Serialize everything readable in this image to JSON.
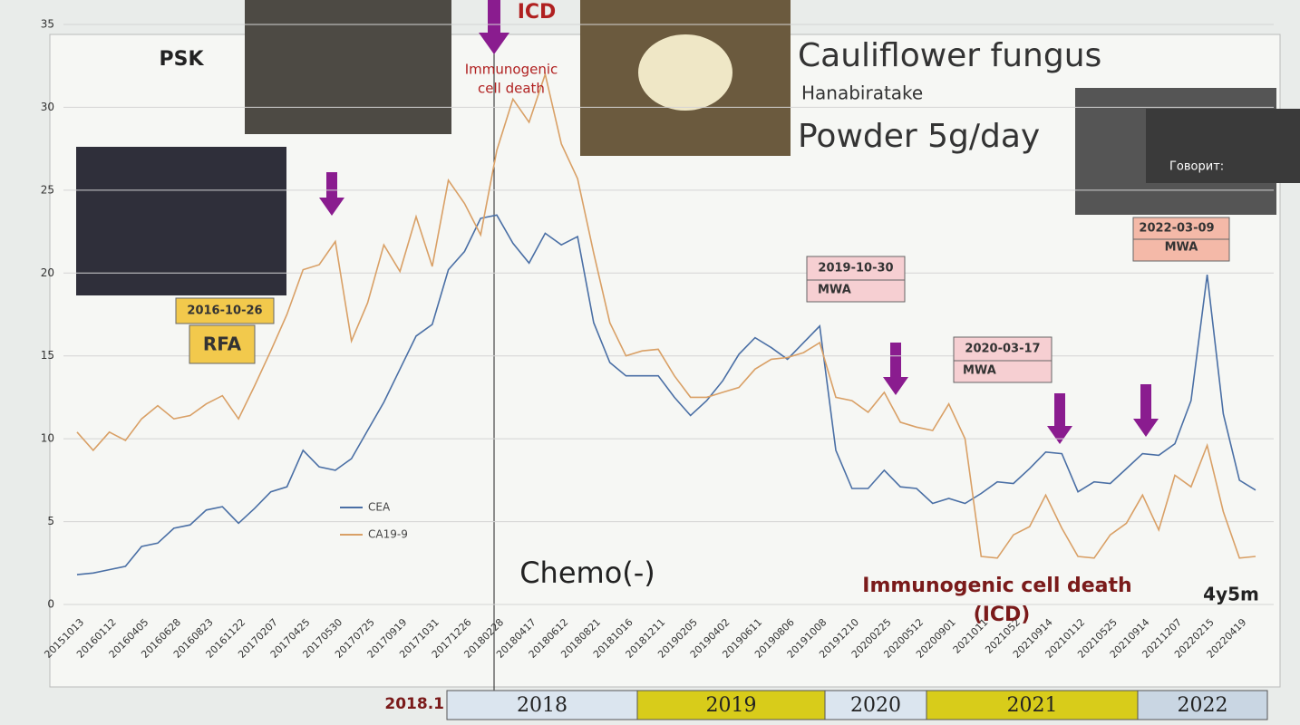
{
  "chart_data": {
    "type": "line",
    "categories": [
      "20151013",
      null,
      "20160112",
      null,
      "20160405",
      null,
      "20160628",
      null,
      "20160823",
      null,
      "20161122",
      null,
      "20170207",
      null,
      "20170425",
      null,
      "20170530",
      null,
      "20170725",
      null,
      "20170919",
      null,
      "20171031",
      null,
      "20171226",
      null,
      "20180228",
      null,
      "20180417",
      null,
      "20180612",
      null,
      "20180821",
      null,
      "20181016",
      null,
      "20181211",
      null,
      "20190205",
      null,
      "20190402",
      null,
      "20190611",
      null,
      "20190806",
      null,
      "20191008",
      null,
      "20191210",
      null,
      "20200225",
      null,
      "20200512",
      null,
      "20200901",
      null,
      "2021011",
      null,
      "2021052",
      null,
      "20210914",
      null,
      "20210112",
      null,
      "20210525",
      null,
      "20210914",
      null,
      "20211207",
      null,
      "20220215",
      null,
      "20220419",
      null
    ],
    "series": [
      {
        "name": "CEA",
        "color": "#4a6fa5",
        "values": [
          1.8,
          1.9,
          2.1,
          2.3,
          3.5,
          3.7,
          4.6,
          4.8,
          5.7,
          5.9,
          4.9,
          5.8,
          6.8,
          7.1,
          9.3,
          8.3,
          8.1,
          8.8,
          10.5,
          12.2,
          14.2,
          16.2,
          16.9,
          20.2,
          21.3,
          23.3,
          23.5,
          21.8,
          20.6,
          22.4,
          21.7,
          22.2,
          17.0,
          14.6,
          13.8,
          13.8,
          13.8,
          12.5,
          11.4,
          12.3,
          13.5,
          15.1,
          16.1,
          15.5,
          14.8,
          15.8,
          16.8,
          9.3,
          7.0,
          7.0,
          8.1,
          7.1,
          7.0,
          6.1,
          6.4,
          6.1,
          6.7,
          7.4,
          7.3,
          8.2,
          9.2,
          9.1,
          6.8,
          7.4,
          7.3,
          8.2,
          9.1,
          9.0,
          9.7,
          12.3,
          19.9,
          11.5,
          7.5,
          6.9
        ]
      },
      {
        "name": "CA19-9",
        "color": "#d9a066",
        "values": [
          10.4,
          9.3,
          10.4,
          9.9,
          11.2,
          12.0,
          11.2,
          11.4,
          12.1,
          12.6,
          11.2,
          13.2,
          15.3,
          17.5,
          20.2,
          20.5,
          21.9,
          15.9,
          18.2,
          21.7,
          20.1,
          23.4,
          20.4,
          25.6,
          24.2,
          22.3,
          27.4,
          30.5,
          29.1,
          32.0,
          27.8,
          25.7,
          21.2,
          17.0,
          15.0,
          15.3,
          15.4,
          13.8,
          12.5,
          12.5,
          12.8,
          13.1,
          14.2,
          14.8,
          14.9,
          15.2,
          15.8,
          12.5,
          12.3,
          11.6,
          12.8,
          11.0,
          10.7,
          10.5,
          12.1,
          10.0,
          2.9,
          2.8,
          4.2,
          4.7,
          6.6,
          4.6,
          2.9,
          2.8,
          4.2,
          4.9,
          6.6,
          4.5,
          7.8,
          7.1,
          9.6,
          5.6,
          2.8,
          2.9
        ]
      }
    ],
    "ylim": [
      0,
      35
    ],
    "yticks": [
      0,
      5,
      10,
      15,
      20,
      25,
      30,
      35
    ],
    "grid": true,
    "annotations": [
      "PSK",
      "ICD",
      "Immunogenic",
      "cell death",
      "Cauliflower fungus",
      "Hanabiratake",
      "Powder 5g/day",
      "2016-10-26",
      "RFA",
      "2019-10-30",
      "MWA",
      "2020-03-17",
      "MWA",
      "2022-03-09",
      "MWA",
      "Chemo(-)",
      "Immunogenic cell death",
      "(ICD)",
      "4y5m",
      "Говорит:"
    ],
    "timeline": {
      "start": "2018.1",
      "years": [
        {
          "label": "2018",
          "color": "#dbe5ef"
        },
        {
          "label": "2019",
          "color": "#d8cc1a"
        },
        {
          "label": "2020",
          "color": "#dbe5ef"
        },
        {
          "label": "2021",
          "color": "#d8cc1a"
        },
        {
          "label": "2022",
          "color": "#c9d6e3"
        }
      ]
    }
  }
}
